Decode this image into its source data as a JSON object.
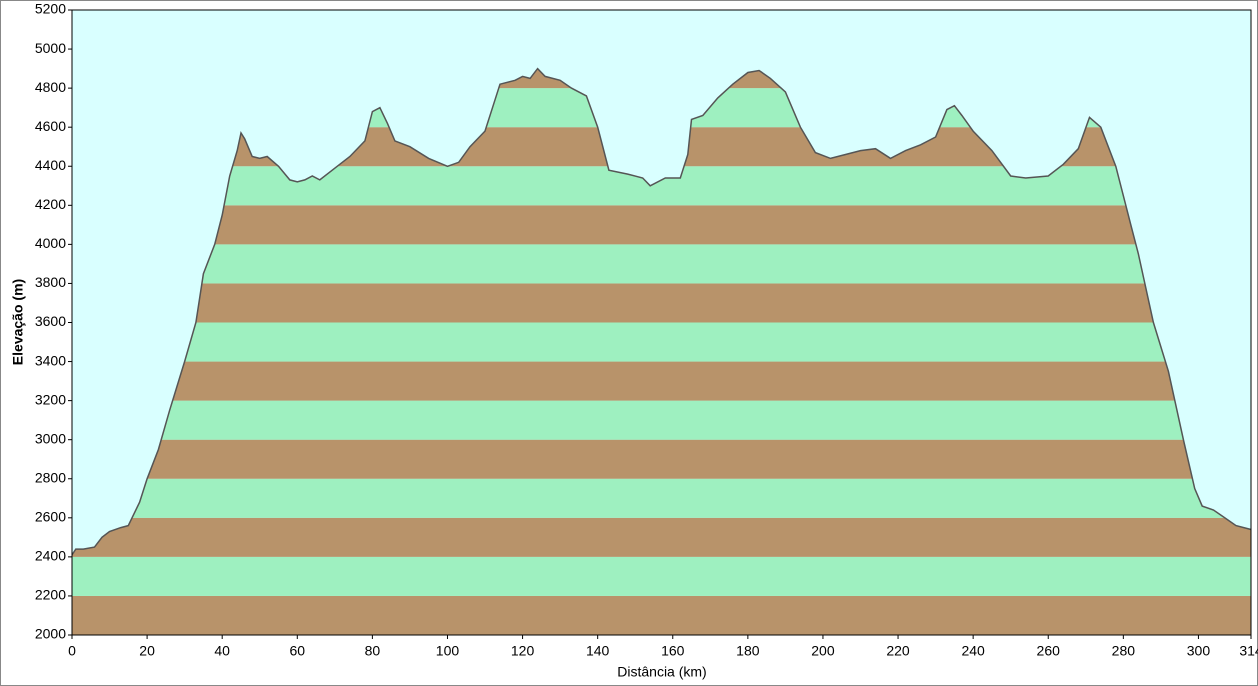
{
  "chart_data": {
    "type": "area",
    "xlabel": "Distância  (km)",
    "ylabel": "Elevação (m)",
    "xlim": [
      0,
      314
    ],
    "ylim": [
      2000,
      5200
    ],
    "xticks": [
      0,
      20,
      40,
      60,
      80,
      100,
      120,
      140,
      160,
      180,
      200,
      220,
      240,
      260,
      280,
      300,
      314
    ],
    "yticks": [
      2000,
      2200,
      2400,
      2600,
      2800,
      3000,
      3200,
      3400,
      3600,
      3800,
      4000,
      4200,
      4400,
      4600,
      4800,
      5000,
      5200
    ],
    "background": "#d9ffff",
    "band_colors": [
      "#b8936a",
      "#9ef0c0"
    ],
    "line_color": "#555555",
    "x": [
      0,
      1,
      3,
      6,
      8,
      10,
      13,
      15,
      18,
      20,
      23,
      26,
      30,
      33,
      35,
      38,
      40,
      42,
      44,
      45,
      46,
      48,
      50,
      52,
      55,
      58,
      60,
      62,
      64,
      66,
      70,
      74,
      78,
      80,
      82,
      84,
      86,
      90,
      95,
      100,
      103,
      106,
      110,
      112,
      114,
      118,
      120,
      122,
      124,
      126,
      130,
      133,
      137,
      140,
      143,
      148,
      152,
      154,
      158,
      162,
      164,
      165,
      168,
      172,
      176,
      180,
      183,
      186,
      190,
      194,
      198,
      202,
      206,
      210,
      214,
      218,
      222,
      226,
      230,
      233,
      235,
      237,
      240,
      245,
      250,
      254,
      260,
      264,
      268,
      271,
      274,
      278,
      282,
      284,
      288,
      292,
      296,
      299,
      301,
      304,
      307,
      310,
      314
    ],
    "values": [
      2410,
      2440,
      2440,
      2450,
      2500,
      2530,
      2550,
      2560,
      2680,
      2800,
      2950,
      3150,
      3400,
      3600,
      3850,
      4000,
      4150,
      4350,
      4480,
      4570,
      4540,
      4450,
      4440,
      4450,
      4400,
      4330,
      4320,
      4330,
      4350,
      4330,
      4390,
      4450,
      4530,
      4680,
      4700,
      4620,
      4530,
      4500,
      4440,
      4400,
      4420,
      4500,
      4580,
      4700,
      4820,
      4840,
      4860,
      4850,
      4900,
      4860,
      4840,
      4800,
      4760,
      4600,
      4380,
      4360,
      4340,
      4300,
      4340,
      4340,
      4460,
      4640,
      4660,
      4750,
      4820,
      4880,
      4890,
      4850,
      4780,
      4600,
      4470,
      4440,
      4460,
      4480,
      4490,
      4440,
      4480,
      4510,
      4550,
      4690,
      4710,
      4660,
      4580,
      4480,
      4350,
      4340,
      4350,
      4410,
      4490,
      4650,
      4600,
      4400,
      4100,
      3950,
      3600,
      3350,
      3000,
      2750,
      2660,
      2640,
      2600,
      2560,
      2540
    ]
  }
}
